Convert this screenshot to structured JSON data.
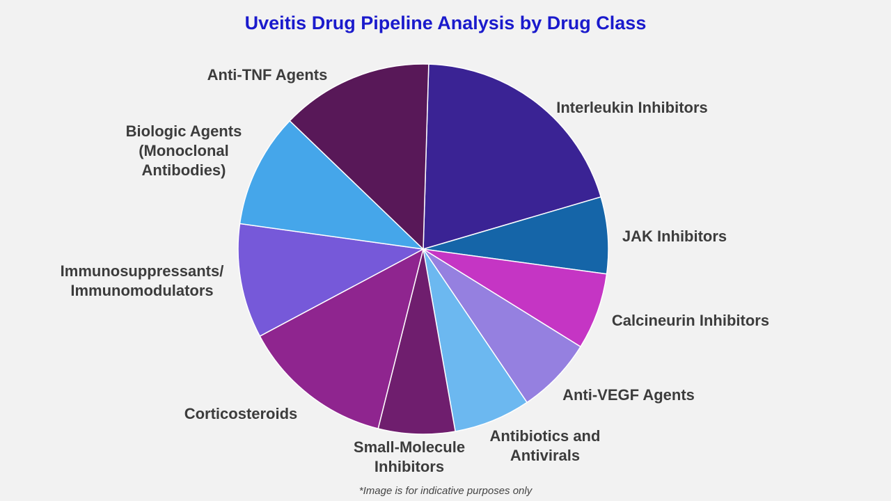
{
  "chart_data": {
    "type": "pie",
    "title": "Uveitis Drug Pipeline Analysis by Drug Class",
    "footnote": "*Image is for indicative purposes only",
    "categories": [
      "Interleukin Inhibitors",
      "JAK Inhibitors",
      "Calcineurin Inhibitors",
      "Anti-VEGF Agents",
      "Antibiotics and Antivirals",
      "Small-Molecule Inhibitors",
      "Corticosteroids",
      "Immunosuppressants/ Immunomodulators",
      "Biologic Agents (Monoclonal Antibodies)",
      "Anti-TNF Agents"
    ],
    "values": [
      20,
      6.7,
      6.7,
      6.7,
      6.7,
      6.7,
      13.3,
      10,
      10,
      13.3
    ],
    "colors": [
      "#3a2394",
      "#1565a8",
      "#c535c4",
      "#9580e0",
      "#6cb8f0",
      "#6f1e6e",
      "#8f258f",
      "#7659d9",
      "#45a6ea",
      "#581858"
    ]
  }
}
